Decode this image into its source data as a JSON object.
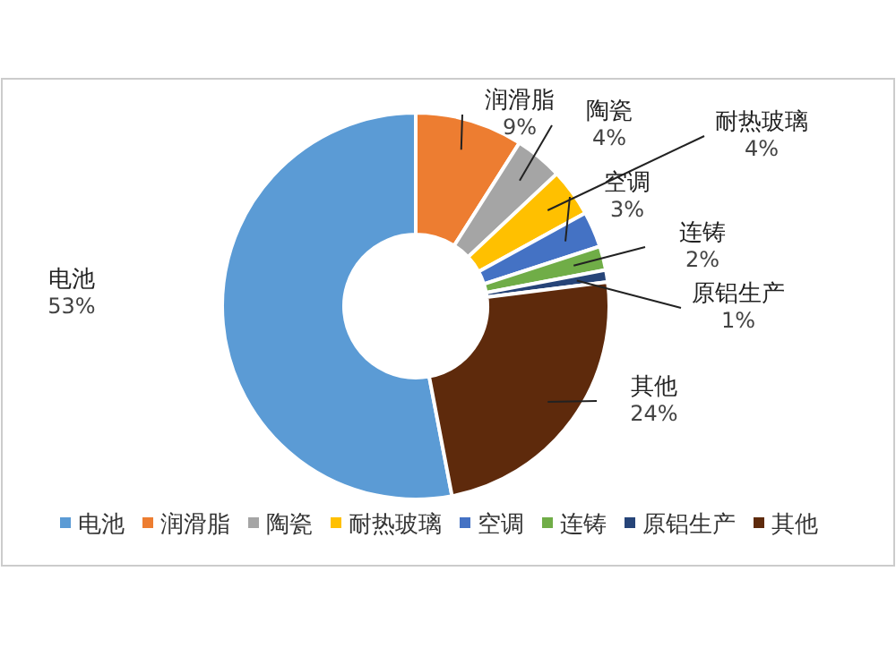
{
  "chart_data": {
    "type": "donut",
    "categories": [
      "电池",
      "润滑脂",
      "陶瓷",
      "耐热玻璃",
      "空调",
      "连铸",
      "原铝生产",
      "其他"
    ],
    "values": [
      53,
      9,
      4,
      4,
      3,
      2,
      1,
      24
    ],
    "colors": [
      "#5b9bd5",
      "#ed7d31",
      "#a5a5a5",
      "#ffc000",
      "#4472c4",
      "#70ad47",
      "#264478",
      "#5e2a0c"
    ],
    "value_labels": [
      "53%",
      "9%",
      "4%",
      "4%",
      "3%",
      "2%",
      "1%",
      "24%"
    ],
    "legend": "bottom"
  }
}
